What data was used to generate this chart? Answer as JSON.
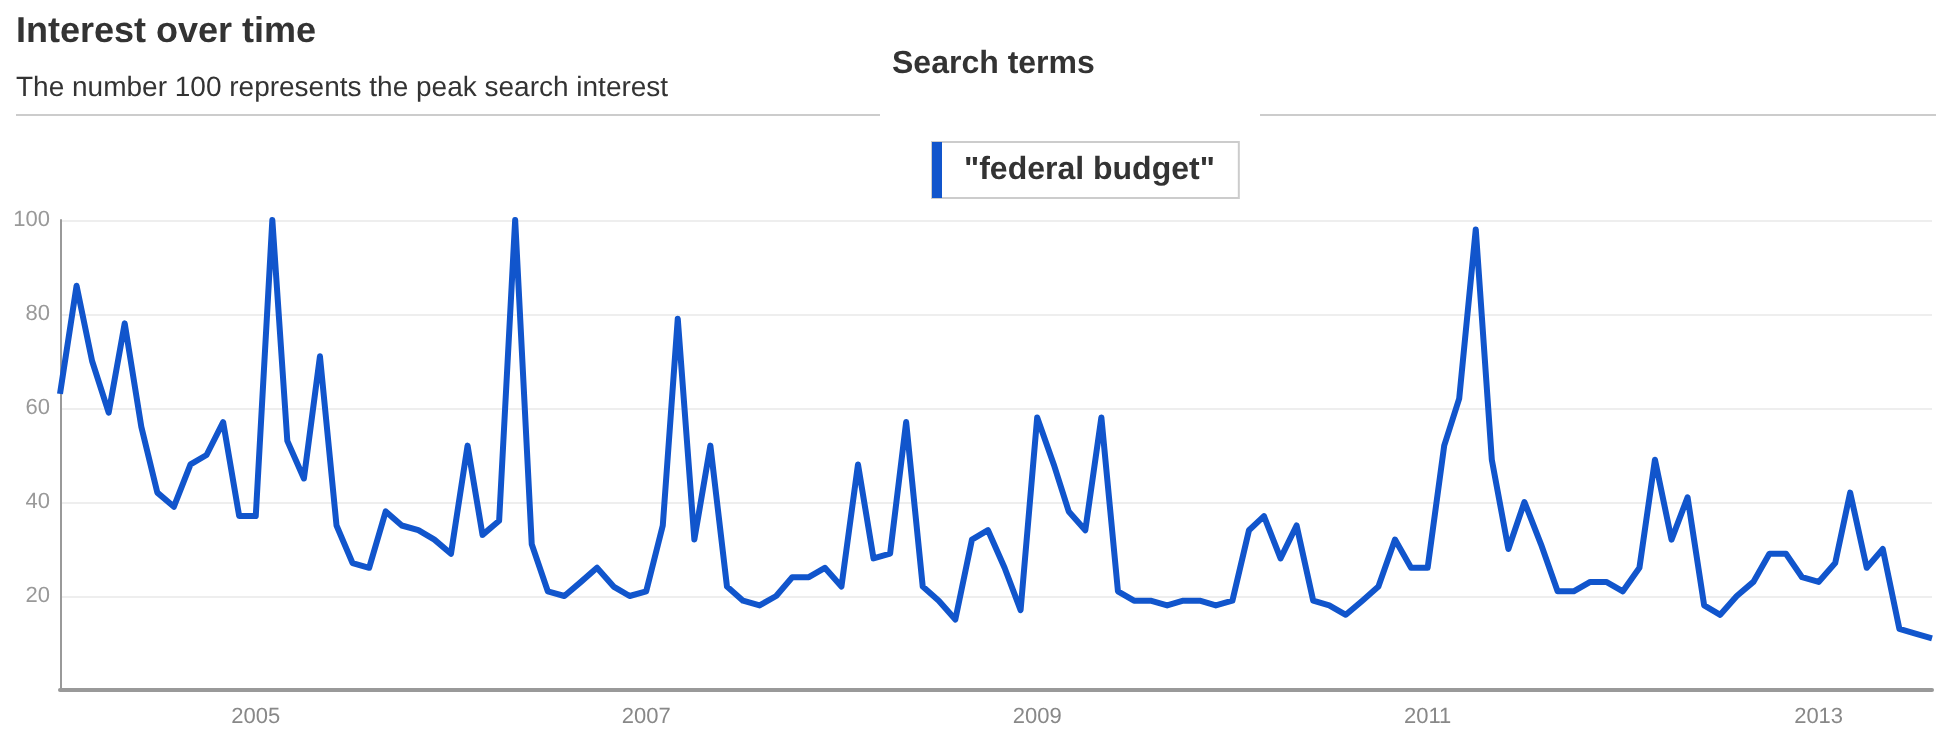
{
  "chart_data": {
    "type": "line",
    "title": "Interest over time",
    "subtitle": "The number 100 represents the peak search interest",
    "legend_title": "Search terms",
    "legend": "top",
    "grid": "y",
    "marker": "none",
    "line_style": "solid",
    "x": [
      "2004-01",
      "2004-02",
      "2004-03",
      "2004-04",
      "2004-05",
      "2004-06",
      "2004-07",
      "2004-08",
      "2004-09",
      "2004-10",
      "2004-11",
      "2004-12",
      "2005-01",
      "2005-02",
      "2005-03",
      "2005-04",
      "2005-05",
      "2005-06",
      "2005-07",
      "2005-08",
      "2005-09",
      "2005-10",
      "2005-11",
      "2005-12",
      "2006-01",
      "2006-02",
      "2006-03",
      "2006-04",
      "2006-05",
      "2006-06",
      "2006-07",
      "2006-08",
      "2006-09",
      "2006-10",
      "2006-11",
      "2006-12",
      "2007-01",
      "2007-02",
      "2007-03",
      "2007-04",
      "2007-05",
      "2007-06",
      "2007-07",
      "2007-08",
      "2007-09",
      "2007-10",
      "2007-11",
      "2007-12",
      "2008-01",
      "2008-02",
      "2008-03",
      "2008-04",
      "2008-05",
      "2008-06",
      "2008-07",
      "2008-08",
      "2008-09",
      "2008-10",
      "2008-11",
      "2008-12",
      "2009-01",
      "2009-02",
      "2009-03",
      "2009-04",
      "2009-05",
      "2009-06",
      "2009-07",
      "2009-08",
      "2009-09",
      "2009-10",
      "2009-11",
      "2009-12",
      "2010-01",
      "2010-02",
      "2010-03",
      "2010-04",
      "2010-05",
      "2010-06",
      "2010-07",
      "2010-08",
      "2010-09",
      "2010-10",
      "2010-11",
      "2010-12",
      "2011-01",
      "2011-02",
      "2011-03",
      "2011-04",
      "2011-05",
      "2011-06",
      "2011-07",
      "2011-08",
      "2011-09",
      "2011-10",
      "2011-11",
      "2011-12",
      "2012-01",
      "2012-02",
      "2012-03",
      "2012-04",
      "2012-05",
      "2012-06",
      "2012-07",
      "2012-08",
      "2012-09",
      "2012-10",
      "2012-11",
      "2012-12",
      "2013-01",
      "2013-02",
      "2013-03",
      "2013-04",
      "2013-05",
      "2013-06",
      "2013-07",
      "2013-08"
    ],
    "series": [
      {
        "name": "\"federal budget\"",
        "color": "#1155cc",
        "values": [
          63,
          86,
          70,
          59,
          78,
          56,
          42,
          39,
          48,
          50,
          57,
          37,
          37,
          100,
          53,
          45,
          71,
          35,
          27,
          26,
          38,
          35,
          34,
          32,
          29,
          52,
          33,
          36,
          100,
          31,
          21,
          20,
          23,
          26,
          22,
          20,
          21,
          35,
          79,
          32,
          52,
          22,
          19,
          18,
          20,
          24,
          24,
          26,
          22,
          48,
          28,
          29,
          57,
          22,
          19,
          15,
          32,
          34,
          26,
          17,
          58,
          48,
          38,
          34,
          58,
          21,
          19,
          19,
          18,
          19,
          19,
          18,
          19,
          34,
          37,
          28,
          35,
          19,
          18,
          16,
          19,
          22,
          32,
          26,
          26,
          52,
          62,
          98,
          49,
          30,
          40,
          31,
          21,
          21,
          23,
          23,
          21,
          26,
          49,
          32,
          41,
          18,
          16,
          20,
          23,
          29,
          29,
          24,
          23,
          27,
          42,
          26,
          30,
          13,
          12,
          11
        ]
      }
    ],
    "xlim": [
      "2004-01",
      "2013-08"
    ],
    "xticks": [
      "2005",
      "2007",
      "2009",
      "2011",
      "2013"
    ],
    "ylim": [
      0,
      100
    ],
    "yticks": [
      20,
      40,
      60,
      80,
      100
    ]
  }
}
